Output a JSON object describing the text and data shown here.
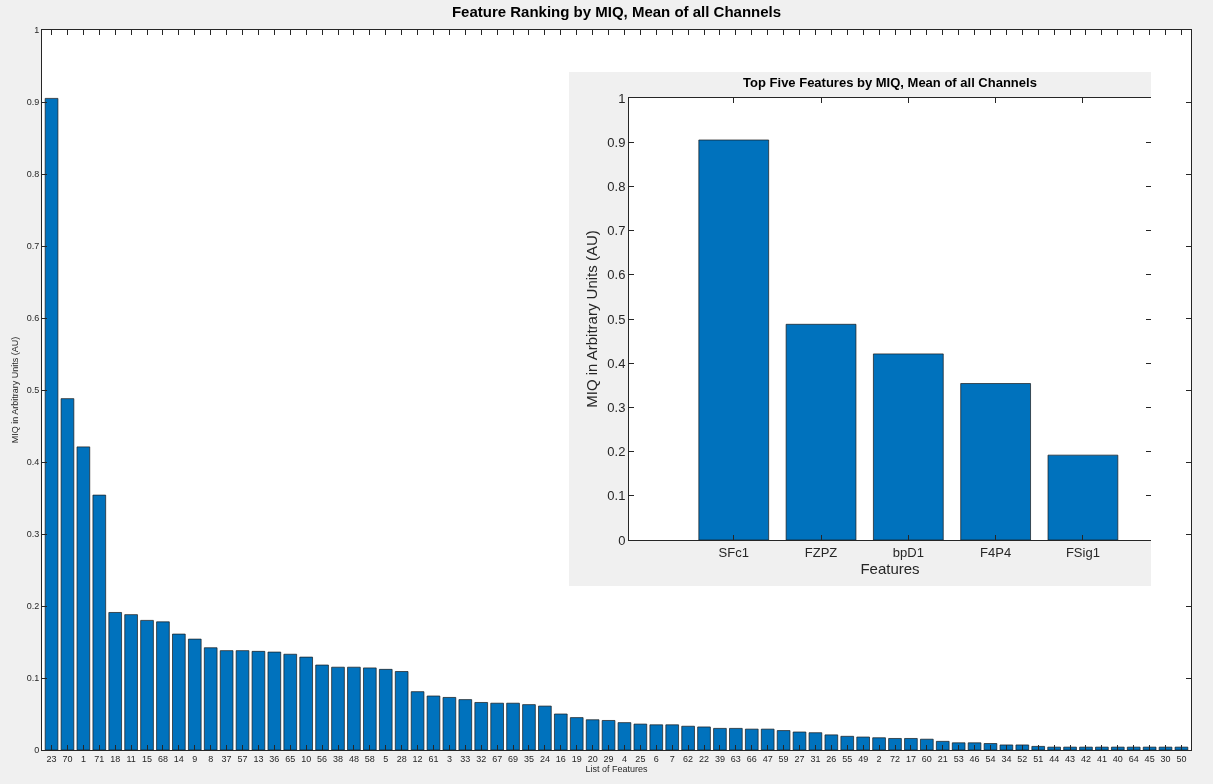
{
  "chart_data": [
    {
      "type": "bar",
      "title": "Feature Ranking by MIQ, Mean of all Channels",
      "xlabel": "List of Features",
      "ylabel": "MIQ in Arbitrary Units (AU)",
      "categories": [
        "23",
        "70",
        "1",
        "71",
        "18",
        "11",
        "15",
        "68",
        "14",
        "9",
        "8",
        "37",
        "57",
        "13",
        "36",
        "65",
        "10",
        "56",
        "38",
        "48",
        "58",
        "5",
        "28",
        "12",
        "61",
        "3",
        "33",
        "32",
        "67",
        "69",
        "35",
        "24",
        "16",
        "19",
        "20",
        "29",
        "4",
        "25",
        "6",
        "7",
        "62",
        "22",
        "39",
        "63",
        "66",
        "47",
        "59",
        "27",
        "31",
        "26",
        "55",
        "49",
        "2",
        "72",
        "17",
        "60",
        "21",
        "53",
        "46",
        "54",
        "34",
        "52",
        "51",
        "44",
        "43",
        "42",
        "41",
        "40",
        "64",
        "45",
        "30",
        "50"
      ],
      "values": [
        0.905,
        0.488,
        0.421,
        0.354,
        0.191,
        0.188,
        0.18,
        0.178,
        0.161,
        0.154,
        0.142,
        0.138,
        0.138,
        0.137,
        0.136,
        0.133,
        0.129,
        0.118,
        0.115,
        0.115,
        0.114,
        0.112,
        0.109,
        0.081,
        0.075,
        0.073,
        0.07,
        0.066,
        0.065,
        0.065,
        0.063,
        0.061,
        0.05,
        0.045,
        0.042,
        0.041,
        0.038,
        0.036,
        0.035,
        0.035,
        0.033,
        0.032,
        0.03,
        0.03,
        0.029,
        0.029,
        0.027,
        0.025,
        0.024,
        0.021,
        0.019,
        0.018,
        0.017,
        0.016,
        0.016,
        0.015,
        0.012,
        0.01,
        0.01,
        0.009,
        0.007,
        0.007,
        0.005,
        0.004,
        0.004,
        0.004,
        0.004,
        0.004,
        0.004,
        0.004,
        0.004,
        0.004
      ],
      "color": "#0072bd",
      "ylim": [
        0,
        1
      ],
      "yticks": [
        0,
        0.1,
        0.2,
        0.3,
        0.4,
        0.5,
        0.6,
        0.7,
        0.8,
        0.9,
        1
      ],
      "grid": false,
      "legend": false
    },
    {
      "type": "bar",
      "title": "Top Five Features by MIQ, Mean of all Channels",
      "xlabel": "Features",
      "ylabel": "MIQ in Arbitrary Units (AU)",
      "categories": [
        "SFc1",
        "FZPZ",
        "bpD1",
        "F4P4",
        "FSig1"
      ],
      "values": [
        0.905,
        0.488,
        0.421,
        0.354,
        0.192
      ],
      "color": "#0072bd",
      "ylim": [
        0,
        1
      ],
      "yticks": [
        0,
        0.1,
        0.2,
        0.3,
        0.4,
        0.5,
        0.6,
        0.7,
        0.8,
        0.9,
        1
      ],
      "grid": false,
      "legend": false
    }
  ]
}
